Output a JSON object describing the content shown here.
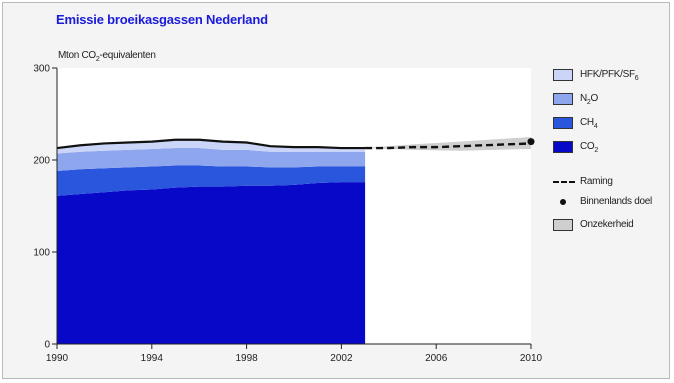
{
  "title": "Emissie broeikasgassen Nederland",
  "unit_label": {
    "main": "Mton CO",
    "sub": "2",
    "tail": "-equivalenten"
  },
  "colors": {
    "hfk": "#cbd5f8",
    "n2o": "#8ea6ee",
    "ch4": "#2a55dd",
    "co2": "#0808c8",
    "total_line": "#111111",
    "uncertainty": "#cfcfcf"
  },
  "legend": [
    {
      "key": "hfk",
      "text": "HFK/PFK/SF",
      "sub": "6",
      "symbol": "swatch",
      "color": "#cbd5f8"
    },
    {
      "key": "n2o",
      "text": "N",
      "sub": "2",
      "tail": "O",
      "symbol": "swatch",
      "color": "#8ea6ee"
    },
    {
      "key": "ch4",
      "text": "CH",
      "sub": "4",
      "symbol": "swatch",
      "color": "#2a55dd"
    },
    {
      "key": "co2",
      "text": "CO",
      "sub": "2",
      "symbol": "swatch",
      "color": "#0808c8"
    },
    {
      "key": "raming",
      "text": "Raming",
      "symbol": "dash"
    },
    {
      "key": "doel",
      "text": "Binnenlands doel",
      "symbol": "dot"
    },
    {
      "key": "onzekerheid",
      "text": "Onzekerheid",
      "symbol": "swatch",
      "color": "#cfcfcf"
    }
  ],
  "chart_data": {
    "type": "area",
    "title": "Emissie broeikasgassen Nederland",
    "ylabel": "Mton CO2-equivalenten",
    "xlim": [
      1990,
      2010
    ],
    "ylim": [
      0,
      300
    ],
    "xticks": [
      1990,
      1994,
      1998,
      2002,
      2006,
      2010
    ],
    "yticks": [
      0,
      100,
      200,
      300
    ],
    "grid": false,
    "legend_position": "right",
    "stacked": true,
    "x": [
      1990,
      1991,
      1992,
      1993,
      1994,
      1995,
      1996,
      1997,
      1998,
      1999,
      2000,
      2001,
      2002,
      2003
    ],
    "series": [
      {
        "name": "CO2",
        "values": [
          161,
          163,
          165,
          167,
          168,
          170,
          171,
          171,
          172,
          172,
          173,
          175,
          176,
          176
        ]
      },
      {
        "name": "CH4",
        "values": [
          27,
          27,
          26,
          25,
          25,
          24,
          23,
          22,
          21,
          20,
          19,
          18,
          17,
          17
        ]
      },
      {
        "name": "N2O",
        "values": [
          19,
          19,
          19,
          19,
          19,
          19,
          19,
          18,
          18,
          17,
          17,
          16,
          16,
          16
        ]
      },
      {
        "name": "HFK/PFK/SF6",
        "values": [
          6,
          7,
          8,
          8,
          8,
          9,
          9,
          9,
          8,
          6,
          5,
          5,
          4,
          4
        ]
      }
    ],
    "projection": {
      "name": "Raming",
      "x": [
        2003,
        2004,
        2005,
        2006,
        2007,
        2008,
        2009,
        2010
      ],
      "values": [
        213,
        213,
        214,
        214,
        215,
        216,
        217,
        218
      ]
    },
    "uncertainty": {
      "name": "Onzekerheid",
      "x": [
        2003,
        2005,
        2007,
        2010
      ],
      "lower": [
        213,
        211,
        210,
        212
      ],
      "upper": [
        213,
        217,
        220,
        225
      ]
    },
    "target": {
      "name": "Binnenlands doel",
      "x": 2010,
      "y": 220
    }
  }
}
